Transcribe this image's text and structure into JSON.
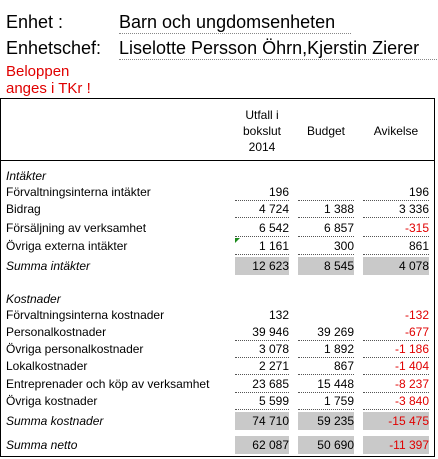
{
  "header": {
    "unit_label": "Enhet :",
    "unit_value": "Barn och ungdomsenheten",
    "chief_label": "Enhetschef:",
    "chief_value": "Liselotte Persson Öhrn,Kjerstin Zierer",
    "note_line1": "Beloppen",
    "note_line2": "anges i TKr !"
  },
  "columns": {
    "outcome_line1": "Utfall  i",
    "outcome_line2": "bokslut",
    "outcome_line3": "2014",
    "budget": "Budget",
    "deviation": "Avikelse"
  },
  "income": {
    "section": "Intäkter",
    "rows": [
      {
        "name": "Förvaltningsinterna intäkter",
        "outcome": "196",
        "budget": "",
        "deviation": "196"
      },
      {
        "name": "Bidrag",
        "outcome": "4 724",
        "budget": "1 388",
        "deviation": "3 336"
      },
      {
        "name": "Försäljning av verksamhet",
        "outcome": "6 542",
        "budget": "6 857",
        "deviation": "-315"
      },
      {
        "name": "Övriga externa intäkter",
        "outcome": "1 161",
        "budget": "300",
        "deviation": "861"
      }
    ],
    "sum": {
      "name": "Summa  intäkter",
      "outcome": "12 623",
      "budget": "8 545",
      "deviation": "4 078"
    }
  },
  "costs": {
    "section": "Kostnader",
    "rows": [
      {
        "name": "Förvaltningsinterna kostnader",
        "outcome": "132",
        "budget": "",
        "deviation": "-132"
      },
      {
        "name": "Personalkostnader",
        "outcome": "39 946",
        "budget": "39 269",
        "deviation": "-677"
      },
      {
        "name": "Övriga personalkostnader",
        "outcome": "3 078",
        "budget": "1 892",
        "deviation": "-1 186"
      },
      {
        "name": "Lokalkostnader",
        "outcome": "2 271",
        "budget": "867",
        "deviation": "-1 404"
      },
      {
        "name": "Entreprenader och köp av verksamhet",
        "outcome": "23 685",
        "budget": "15 448",
        "deviation": "-8 237"
      },
      {
        "name": "Övriga kostnader",
        "outcome": "5 599",
        "budget": "1 759",
        "deviation": "-3 840"
      }
    ],
    "sum": {
      "name": "Summa kostnader",
      "outcome": "74 710",
      "budget": "59 235",
      "deviation": "-15 475"
    }
  },
  "net": {
    "name": "Summa netto",
    "outcome": "62 087",
    "budget": "50 690",
    "deviation": "-11 397"
  }
}
